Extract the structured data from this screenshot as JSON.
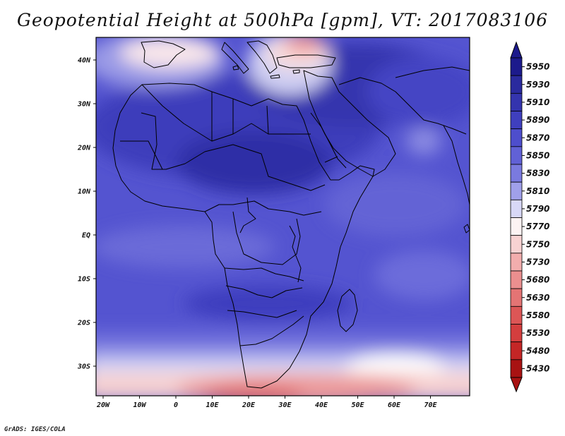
{
  "title": "Geopotential Height at 500hPa [gpm], VT: 2017083106",
  "credit": "GrADS: IGES/COLA",
  "lat_labels": [
    {
      "text": "40N",
      "lat": 40
    },
    {
      "text": "30N",
      "lat": 30
    },
    {
      "text": "20N",
      "lat": 20
    },
    {
      "text": "10N",
      "lat": 10
    },
    {
      "text": "EQ",
      "lat": 0
    },
    {
      "text": "10S",
      "lat": -10
    },
    {
      "text": "20S",
      "lat": -20
    },
    {
      "text": "30S",
      "lat": -30
    }
  ],
  "lon_labels": [
    {
      "text": "20W",
      "lon": -20
    },
    {
      "text": "10W",
      "lon": -10
    },
    {
      "text": "0",
      "lon": 0
    },
    {
      "text": "10E",
      "lon": 10
    },
    {
      "text": "20E",
      "lon": 20
    },
    {
      "text": "30E",
      "lon": 30
    },
    {
      "text": "40E",
      "lon": 40
    },
    {
      "text": "50E",
      "lon": 50
    },
    {
      "text": "60E",
      "lon": 60
    },
    {
      "text": "70E",
      "lon": 70
    }
  ],
  "colorbar": [
    {
      "value": "5950",
      "color": "#1c1a8c"
    },
    {
      "value": "5930",
      "color": "#2a2a9e"
    },
    {
      "value": "5910",
      "color": "#3434ae"
    },
    {
      "value": "5890",
      "color": "#3f3fbe"
    },
    {
      "value": "5870",
      "color": "#4e4ecc"
    },
    {
      "value": "5850",
      "color": "#6161d6"
    },
    {
      "value": "5830",
      "color": "#7a7adf"
    },
    {
      "value": "5810",
      "color": "#a0a0ea"
    },
    {
      "value": "5790",
      "color": "#d8d8f7"
    },
    {
      "value": "5770",
      "color": "#fdf3f3"
    },
    {
      "value": "5750",
      "color": "#f8d2d2"
    },
    {
      "value": "5730",
      "color": "#f2adad"
    },
    {
      "value": "5680",
      "color": "#eb8f8f"
    },
    {
      "value": "5630",
      "color": "#e47474"
    },
    {
      "value": "5580",
      "color": "#dc5656"
    },
    {
      "value": "5530",
      "color": "#d43e3e"
    },
    {
      "value": "5480",
      "color": "#c42626"
    },
    {
      "value": "5430",
      "color": "#a81212"
    }
  ]
}
